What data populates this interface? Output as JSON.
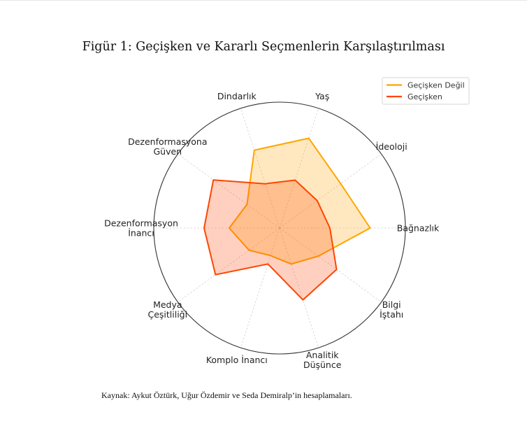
{
  "figure": {
    "title": "Figür 1: Geçişken ve Kararlı Seçmenlerin Karşılaştırılması",
    "source": "Kaynak: Aykut Öztürk, Uğur Özdemir ve Seda Demiralp’in hesaplamaları."
  },
  "chart_data": {
    "type": "radar",
    "categories": [
      "Yaş",
      "İdeoloji",
      "Bağnazlık",
      "Bilgi\nİştahı",
      "Analitik\nDüşünce",
      "Komplo İnancı",
      "Medya\nÇeşitliliği",
      "Dezenformasyon\nİnancı",
      "Dezenformasyona\nGüven",
      "Dindarlık"
    ],
    "series": [
      {
        "name": "Geçişken Değil",
        "color": "#ffa500",
        "fill": "#ffa500",
        "values": [
          0.75,
          0.6,
          0.72,
          0.38,
          0.3,
          0.23,
          0.3,
          0.4,
          0.32,
          0.65
        ]
      },
      {
        "name": "Geçişken",
        "color": "#ff4500",
        "fill": "#ff4500",
        "values": [
          0.4,
          0.37,
          0.4,
          0.56,
          0.6,
          0.3,
          0.63,
          0.6,
          0.65,
          0.37
        ]
      }
    ],
    "rlim": [
      0,
      1
    ],
    "grid": true,
    "legend_position": "top-right"
  }
}
